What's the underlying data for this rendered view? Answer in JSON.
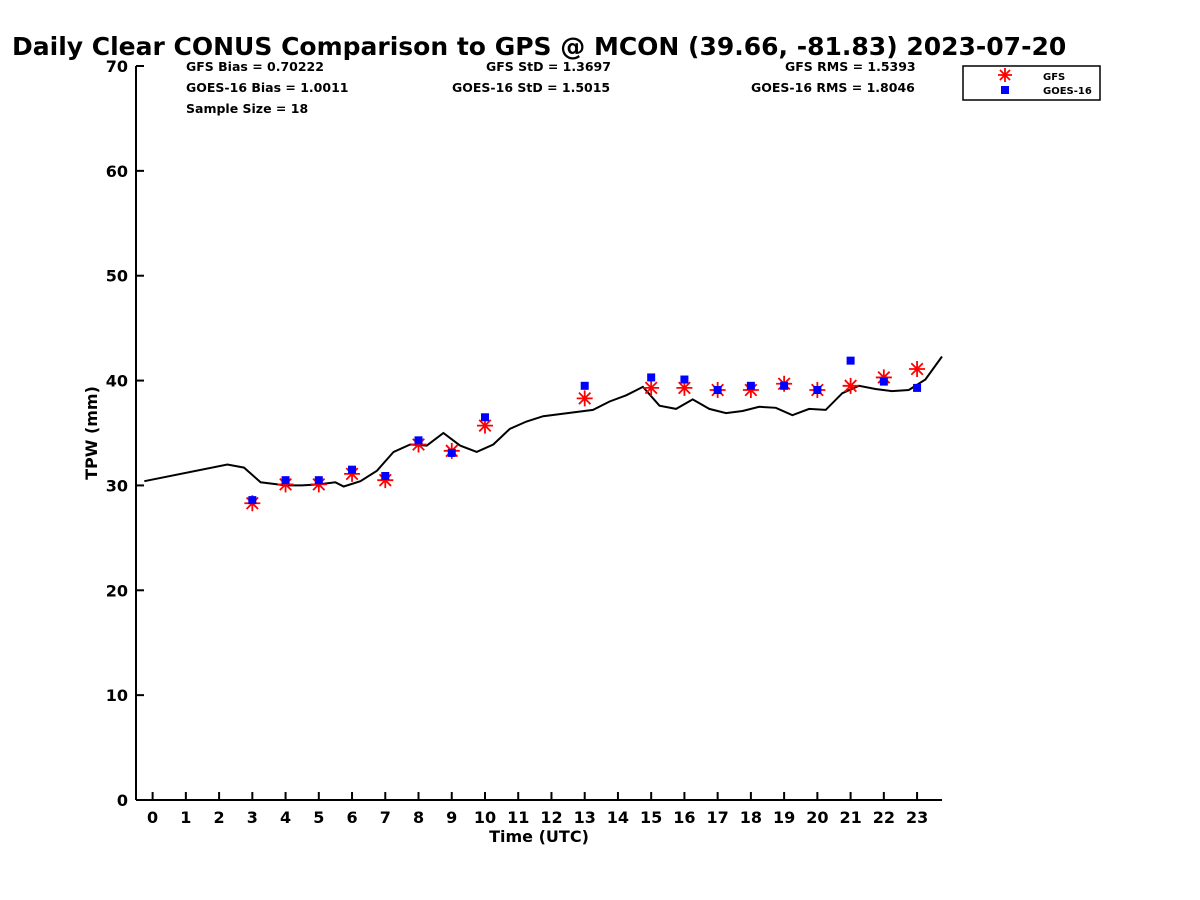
{
  "chart_data": {
    "type": "scatter",
    "title": "Daily Clear CONUS Comparison to GPS @ MCON (39.66, -81.83) 2023-07-20",
    "xlabel": "Time (UTC)",
    "ylabel": "TPW (mm)",
    "xlim": [
      -0.5,
      23.75
    ],
    "ylim": [
      0,
      70
    ],
    "x_ticks": [
      0,
      1,
      2,
      3,
      4,
      5,
      6,
      7,
      8,
      9,
      10,
      11,
      12,
      13,
      14,
      15,
      16,
      17,
      18,
      19,
      20,
      21,
      22,
      23
    ],
    "y_ticks": [
      0,
      10,
      20,
      30,
      40,
      50,
      60,
      70
    ],
    "grid": false,
    "legend_position": "top-right",
    "stats": [
      "GFS Bias = 0.70222",
      "GFS StD = 1.3697",
      "GFS RMS = 1.5393",
      "GOES-16 Bias = 1.0011",
      "GOES-16 StD = 1.5015",
      "GOES-16 RMS = 1.8046",
      "Sample Size = 18"
    ],
    "series": [
      {
        "name": "GFS",
        "marker": "asterisk",
        "color": "#ff0000",
        "x": [
          3,
          4,
          5,
          6,
          7,
          8,
          9,
          10,
          13,
          15,
          16,
          17,
          18,
          19,
          20,
          21,
          22,
          23
        ],
        "y": [
          28.3,
          30.1,
          30.1,
          31.1,
          30.5,
          33.9,
          33.3,
          35.7,
          38.3,
          39.3,
          39.3,
          39.1,
          39.1,
          39.7,
          39.1,
          39.5,
          40.3,
          41.1
        ]
      },
      {
        "name": "GOES-16",
        "marker": "square",
        "color": "#0000ff",
        "x": [
          3,
          4,
          5,
          6,
          7,
          8,
          9,
          10,
          13,
          15,
          16,
          17,
          18,
          19,
          20,
          21,
          22,
          23
        ],
        "y": [
          28.6,
          30.5,
          30.5,
          31.5,
          30.9,
          34.3,
          33.1,
          36.5,
          39.5,
          40.3,
          40.1,
          39.1,
          39.5,
          39.5,
          39.1,
          41.9,
          39.9,
          39.3
        ]
      },
      {
        "marker": "line",
        "color": "#000000",
        "x": [
          -0.25,
          2.25,
          2.75,
          3.25,
          4.0,
          4.5,
          5.0,
          5.5,
          5.75,
          6.25,
          6.75,
          7.25,
          7.75,
          8.25,
          8.75,
          9.25,
          9.75,
          10.25,
          10.75,
          11.25,
          11.75,
          12.25,
          12.75,
          13.25,
          13.75,
          14.25,
          14.75,
          15.25,
          15.75,
          16.25,
          16.75,
          17.25,
          17.75,
          18.25,
          18.75,
          19.25,
          19.75,
          20.25,
          20.75,
          21.25,
          21.75,
          22.25,
          22.75,
          23.25,
          23.75
        ],
        "y": [
          30.4,
          32.0,
          31.7,
          30.3,
          30.0,
          30.0,
          30.1,
          30.3,
          29.9,
          30.4,
          31.4,
          33.2,
          33.9,
          33.8,
          35.0,
          33.8,
          33.2,
          33.9,
          35.4,
          36.1,
          36.6,
          36.8,
          37.0,
          37.2,
          38.0,
          38.6,
          39.4,
          37.6,
          37.3,
          38.2,
          37.3,
          36.9,
          37.1,
          37.5,
          37.4,
          36.7,
          37.3,
          37.2,
          38.8,
          39.5,
          39.2,
          39.0,
          39.1,
          40.1,
          42.3
        ]
      }
    ]
  }
}
